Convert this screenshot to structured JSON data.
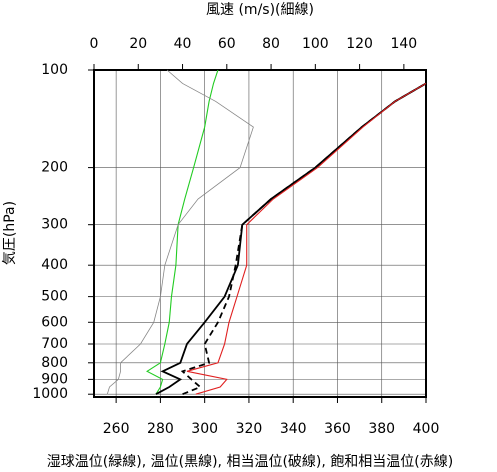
{
  "chart_data": {
    "type": "line",
    "top_axis_label": "風速 (m/s)(細線)",
    "y_axis_label": "気圧(hPa)",
    "caption": "湿球温位(緑線), 温位(黒線), 相当温位(破線), 飽和相当温位(赤線)",
    "y": [
      1000,
      950,
      900,
      850,
      800,
      700,
      600,
      500,
      400,
      300,
      250,
      200,
      150,
      125,
      110,
      100
    ],
    "y_log": true,
    "ylim": [
      1020,
      100
    ],
    "yticks": [
      1000,
      900,
      800,
      700,
      600,
      500,
      400,
      300,
      200,
      100
    ],
    "xlim": [
      250,
      400
    ],
    "xticks": [
      260,
      280,
      300,
      320,
      340,
      360,
      380,
      400
    ],
    "x2lim": [
      0,
      150
    ],
    "x2ticks": [
      0,
      20,
      40,
      60,
      80,
      100,
      120,
      140
    ],
    "grid": true,
    "series": [
      {
        "name": "湿球温位",
        "color": "#22cc22",
        "values": [
          278,
          280,
          281,
          274,
          280,
          282,
          284,
          285,
          287,
          288,
          291,
          295,
          300,
          302,
          304,
          306
        ]
      },
      {
        "name": "温位",
        "color": "#000000",
        "values": [
          278,
          284,
          289,
          281,
          289,
          292,
          300,
          309,
          315,
          317,
          330,
          350,
          371,
          386,
          400,
          null
        ]
      },
      {
        "name": "相当温位",
        "color": "#000000",
        "dashed": true,
        "values": [
          290,
          298,
          294,
          290,
          302,
          300,
          306,
          311,
          314,
          317,
          330,
          350,
          371,
          386,
          400,
          null
        ]
      },
      {
        "name": "飽和相当温位",
        "color": "#e02020",
        "values": [
          296,
          307,
          310,
          292,
          306,
          309,
          311,
          314.6,
          319,
          319,
          331,
          351,
          371.5,
          386,
          400,
          null
        ]
      },
      {
        "name": "風速",
        "color": "#888888",
        "axis": "x2",
        "values": [
          6,
          7,
          11,
          12,
          12,
          21,
          27,
          30,
          32,
          38,
          47,
          66,
          72,
          55,
          40,
          33
        ]
      }
    ]
  }
}
